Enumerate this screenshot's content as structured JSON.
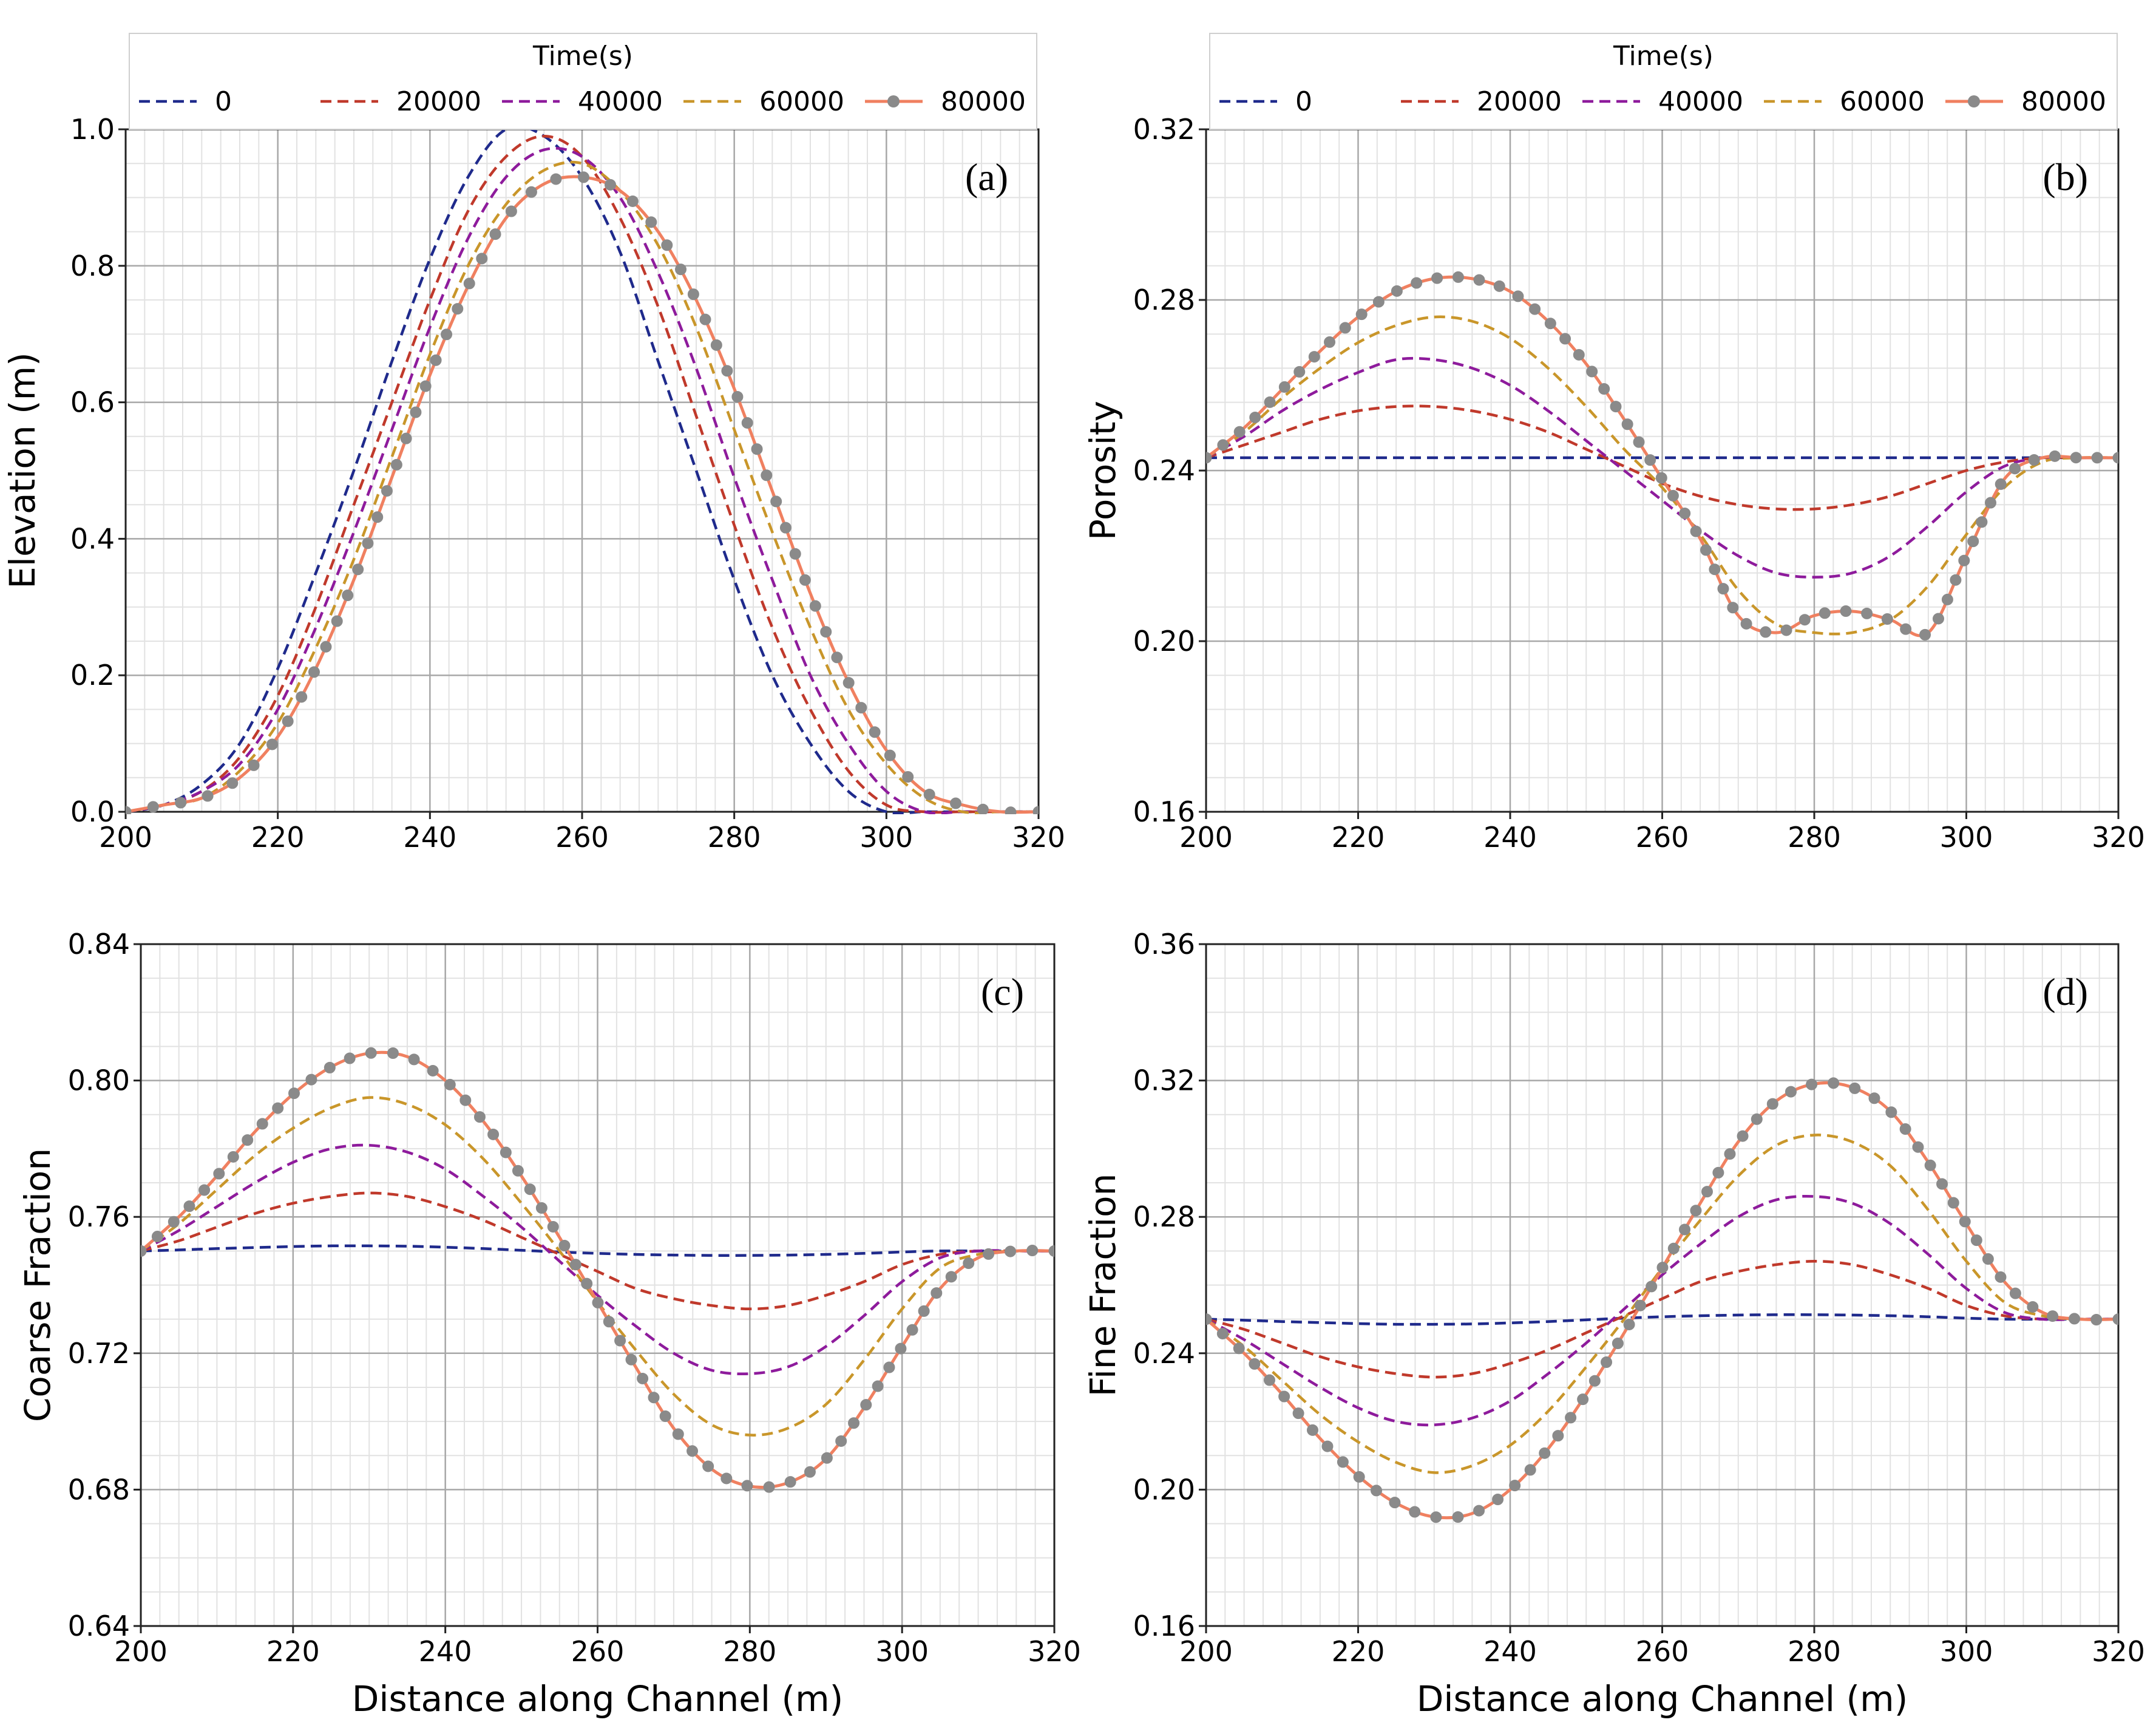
{
  "chart_data": [
    {
      "type": "line",
      "panel_label": "(a)",
      "title": "",
      "xlabel": "",
      "ylabel": "Elevation (m)",
      "xlim": [
        200,
        320
      ],
      "ylim": [
        0.0,
        1.0
      ],
      "xticks": [
        200,
        220,
        240,
        260,
        280,
        300,
        320
      ],
      "yticks": [
        "0.0",
        "0.2",
        "0.4",
        "0.6",
        "0.8",
        "1.0"
      ],
      "ytick_values": [
        0.0,
        0.2,
        0.4,
        0.6,
        0.8,
        1.0
      ],
      "grid": true,
      "legend": {
        "title": "Time(s)",
        "placement": "top"
      },
      "x": [
        200,
        205,
        210,
        215,
        220,
        225,
        230,
        235,
        240,
        245,
        250,
        255,
        260,
        265,
        270,
        275,
        280,
        285,
        290,
        295,
        300,
        305,
        310,
        315,
        320
      ],
      "series": [
        {
          "name": "0",
          "values": [
            0.0,
            0.01,
            0.04,
            0.1,
            0.21,
            0.35,
            0.5,
            0.66,
            0.81,
            0.93,
            1.0,
            0.99,
            0.93,
            0.82,
            0.66,
            0.5,
            0.34,
            0.2,
            0.1,
            0.03,
            0.0,
            0.0,
            0.0,
            0.0,
            0.0
          ]
        },
        {
          "name": "20000",
          "values": [
            0.0,
            0.01,
            0.03,
            0.08,
            0.17,
            0.3,
            0.45,
            0.6,
            0.75,
            0.88,
            0.96,
            0.99,
            0.96,
            0.87,
            0.74,
            0.58,
            0.42,
            0.27,
            0.15,
            0.06,
            0.01,
            0.0,
            0.0,
            0.0,
            0.0
          ]
        },
        {
          "name": "40000",
          "values": [
            0.0,
            0.01,
            0.03,
            0.07,
            0.15,
            0.27,
            0.41,
            0.56,
            0.71,
            0.84,
            0.93,
            0.97,
            0.96,
            0.9,
            0.79,
            0.65,
            0.49,
            0.34,
            0.2,
            0.1,
            0.03,
            0.0,
            0.0,
            0.0,
            0.0
          ]
        },
        {
          "name": "60000",
          "values": [
            0.0,
            0.01,
            0.02,
            0.06,
            0.13,
            0.24,
            0.37,
            0.52,
            0.67,
            0.8,
            0.89,
            0.94,
            0.95,
            0.91,
            0.83,
            0.71,
            0.56,
            0.41,
            0.27,
            0.15,
            0.07,
            0.02,
            0.0,
            0.0,
            0.0
          ]
        },
        {
          "name": "80000",
          "values": [
            0.0,
            0.01,
            0.02,
            0.05,
            0.11,
            0.21,
            0.34,
            0.49,
            0.64,
            0.77,
            0.87,
            0.92,
            0.93,
            0.91,
            0.85,
            0.75,
            0.62,
            0.47,
            0.32,
            0.19,
            0.09,
            0.03,
            0.01,
            0.0,
            0.0
          ]
        }
      ]
    },
    {
      "type": "line",
      "panel_label": "(b)",
      "title": "",
      "xlabel": "",
      "ylabel": "Porosity",
      "xlim": [
        200,
        320
      ],
      "ylim": [
        0.16,
        0.32
      ],
      "xticks": [
        200,
        220,
        240,
        260,
        280,
        300,
        320
      ],
      "yticks": [
        "0.16",
        "0.20",
        "0.24",
        "0.28",
        "0.32"
      ],
      "ytick_values": [
        0.16,
        0.2,
        0.24,
        0.28,
        0.32
      ],
      "grid": true,
      "legend": {
        "title": "Time(s)",
        "placement": "top"
      },
      "x": [
        200,
        205,
        210,
        215,
        220,
        225,
        230,
        235,
        240,
        245,
        250,
        255,
        260,
        265,
        270,
        275,
        280,
        285,
        290,
        295,
        300,
        305,
        310,
        315,
        320
      ],
      "series": [
        {
          "name": "0",
          "values": [
            0.243,
            0.243,
            0.243,
            0.243,
            0.243,
            0.243,
            0.243,
            0.243,
            0.243,
            0.243,
            0.243,
            0.243,
            0.243,
            0.243,
            0.243,
            0.243,
            0.243,
            0.243,
            0.243,
            0.243,
            0.243,
            0.243,
            0.243,
            0.243,
            0.243
          ]
        },
        {
          "name": "20000",
          "values": [
            0.243,
            0.246,
            0.249,
            0.252,
            0.254,
            0.255,
            0.255,
            0.254,
            0.252,
            0.249,
            0.245,
            0.241,
            0.237,
            0.234,
            0.232,
            0.231,
            0.231,
            0.232,
            0.234,
            0.237,
            0.24,
            0.242,
            0.243,
            0.243,
            0.243
          ]
        },
        {
          "name": "40000",
          "values": [
            0.243,
            0.248,
            0.254,
            0.259,
            0.263,
            0.266,
            0.266,
            0.264,
            0.26,
            0.254,
            0.247,
            0.24,
            0.233,
            0.226,
            0.22,
            0.216,
            0.215,
            0.216,
            0.22,
            0.227,
            0.235,
            0.241,
            0.243,
            0.243,
            0.243
          ]
        },
        {
          "name": "60000",
          "values": [
            0.243,
            0.249,
            0.257,
            0.264,
            0.27,
            0.274,
            0.276,
            0.275,
            0.271,
            0.264,
            0.255,
            0.245,
            0.236,
            0.225,
            0.212,
            0.204,
            0.202,
            0.202,
            0.205,
            0.213,
            0.225,
            0.236,
            0.242,
            0.243,
            0.243
          ]
        },
        {
          "name": "80000",
          "values": [
            0.243,
            0.25,
            0.259,
            0.268,
            0.276,
            0.282,
            0.285,
            0.285,
            0.282,
            0.275,
            0.265,
            0.252,
            0.238,
            0.224,
            0.206,
            0.202,
            0.206,
            0.207,
            0.205,
            0.202,
            0.22,
            0.238,
            0.243,
            0.243,
            0.243
          ]
        }
      ]
    },
    {
      "type": "line",
      "panel_label": "(c)",
      "title": "",
      "xlabel": "Distance along Channel (m)",
      "ylabel": "Coarse Fraction",
      "xlim": [
        200,
        320
      ],
      "ylim": [
        0.64,
        0.84
      ],
      "xticks": [
        200,
        220,
        240,
        260,
        280,
        300,
        320
      ],
      "yticks": [
        "0.64",
        "0.68",
        "0.72",
        "0.76",
        "0.80",
        "0.84"
      ],
      "ytick_values": [
        0.64,
        0.68,
        0.72,
        0.76,
        0.8,
        0.84
      ],
      "grid": true,
      "legend": null,
      "x": [
        200,
        205,
        210,
        215,
        220,
        225,
        230,
        235,
        240,
        245,
        250,
        255,
        260,
        265,
        270,
        275,
        280,
        285,
        290,
        295,
        300,
        305,
        310,
        315,
        320
      ],
      "series": [
        {
          "name": "0",
          "values": [
            0.75,
            0.7503,
            0.7507,
            0.751,
            0.7513,
            0.7515,
            0.7515,
            0.7514,
            0.7511,
            0.7507,
            0.7502,
            0.7497,
            0.7493,
            0.749,
            0.7488,
            0.7487,
            0.7487,
            0.7488,
            0.749,
            0.7493,
            0.7497,
            0.75,
            0.75,
            0.75,
            0.75
          ]
        },
        {
          "name": "20000",
          "values": [
            0.75,
            0.753,
            0.757,
            0.761,
            0.764,
            0.766,
            0.767,
            0.766,
            0.763,
            0.759,
            0.754,
            0.749,
            0.744,
            0.739,
            0.736,
            0.734,
            0.733,
            0.734,
            0.737,
            0.741,
            0.746,
            0.749,
            0.75,
            0.75,
            0.75
          ]
        },
        {
          "name": "40000",
          "values": [
            0.75,
            0.756,
            0.763,
            0.77,
            0.776,
            0.78,
            0.781,
            0.779,
            0.774,
            0.766,
            0.757,
            0.747,
            0.737,
            0.728,
            0.72,
            0.715,
            0.714,
            0.716,
            0.722,
            0.731,
            0.741,
            0.748,
            0.75,
            0.75,
            0.75
          ]
        },
        {
          "name": "60000",
          "values": [
            0.75,
            0.758,
            0.768,
            0.778,
            0.786,
            0.792,
            0.795,
            0.793,
            0.787,
            0.777,
            0.764,
            0.75,
            0.735,
            0.721,
            0.708,
            0.699,
            0.696,
            0.698,
            0.705,
            0.718,
            0.733,
            0.745,
            0.749,
            0.75,
            0.75
          ]
        },
        {
          "name": "80000",
          "values": [
            0.75,
            0.76,
            0.772,
            0.785,
            0.796,
            0.804,
            0.808,
            0.807,
            0.8,
            0.788,
            0.772,
            0.754,
            0.735,
            0.716,
            0.698,
            0.686,
            0.681,
            0.682,
            0.689,
            0.704,
            0.722,
            0.739,
            0.748,
            0.75,
            0.75
          ]
        }
      ]
    },
    {
      "type": "line",
      "panel_label": "(d)",
      "title": "",
      "xlabel": "Distance along Channel (m)",
      "ylabel": "Fine Fraction",
      "xlim": [
        200,
        320
      ],
      "ylim": [
        0.16,
        0.36
      ],
      "xticks": [
        200,
        220,
        240,
        260,
        280,
        300,
        320
      ],
      "yticks": [
        "0.16",
        "0.20",
        "0.24",
        "0.28",
        "0.32",
        "0.36"
      ],
      "ytick_values": [
        0.16,
        0.2,
        0.24,
        0.28,
        0.32,
        0.36
      ],
      "grid": true,
      "legend": null,
      "x": [
        200,
        205,
        210,
        215,
        220,
        225,
        230,
        235,
        240,
        245,
        250,
        255,
        260,
        265,
        270,
        275,
        280,
        285,
        290,
        295,
        300,
        305,
        310,
        315,
        320
      ],
      "series": [
        {
          "name": "0",
          "values": [
            0.25,
            0.2497,
            0.2493,
            0.249,
            0.2487,
            0.2485,
            0.2485,
            0.2486,
            0.2489,
            0.2493,
            0.2498,
            0.2503,
            0.2507,
            0.251,
            0.2512,
            0.2513,
            0.2513,
            0.2512,
            0.251,
            0.2507,
            0.2503,
            0.25,
            0.25,
            0.25,
            0.25
          ]
        },
        {
          "name": "20000",
          "values": [
            0.25,
            0.247,
            0.243,
            0.239,
            0.236,
            0.234,
            0.233,
            0.234,
            0.237,
            0.241,
            0.246,
            0.251,
            0.256,
            0.261,
            0.264,
            0.266,
            0.267,
            0.266,
            0.263,
            0.259,
            0.254,
            0.251,
            0.25,
            0.25,
            0.25
          ]
        },
        {
          "name": "40000",
          "values": [
            0.25,
            0.244,
            0.237,
            0.23,
            0.224,
            0.22,
            0.219,
            0.221,
            0.226,
            0.234,
            0.243,
            0.253,
            0.263,
            0.272,
            0.28,
            0.285,
            0.286,
            0.284,
            0.278,
            0.269,
            0.259,
            0.252,
            0.25,
            0.25,
            0.25
          ]
        },
        {
          "name": "60000",
          "values": [
            0.25,
            0.242,
            0.232,
            0.222,
            0.214,
            0.208,
            0.205,
            0.207,
            0.213,
            0.223,
            0.236,
            0.25,
            0.265,
            0.279,
            0.292,
            0.301,
            0.304,
            0.302,
            0.295,
            0.282,
            0.267,
            0.255,
            0.251,
            0.25,
            0.25
          ]
        },
        {
          "name": "80000",
          "values": [
            0.25,
            0.24,
            0.228,
            0.215,
            0.204,
            0.196,
            0.192,
            0.193,
            0.2,
            0.212,
            0.228,
            0.246,
            0.265,
            0.284,
            0.302,
            0.314,
            0.319,
            0.318,
            0.311,
            0.296,
            0.278,
            0.261,
            0.252,
            0.25,
            0.25
          ]
        }
      ]
    }
  ],
  "legend_title": "Time(s)",
  "series_names": [
    "0",
    "20000",
    "40000",
    "60000",
    "80000"
  ],
  "series_colors": [
    "#1f2a8c",
    "#c0392b",
    "#8e1b9c",
    "#c9962a",
    "#f08060"
  ],
  "marker_color": "#8a8a8a"
}
